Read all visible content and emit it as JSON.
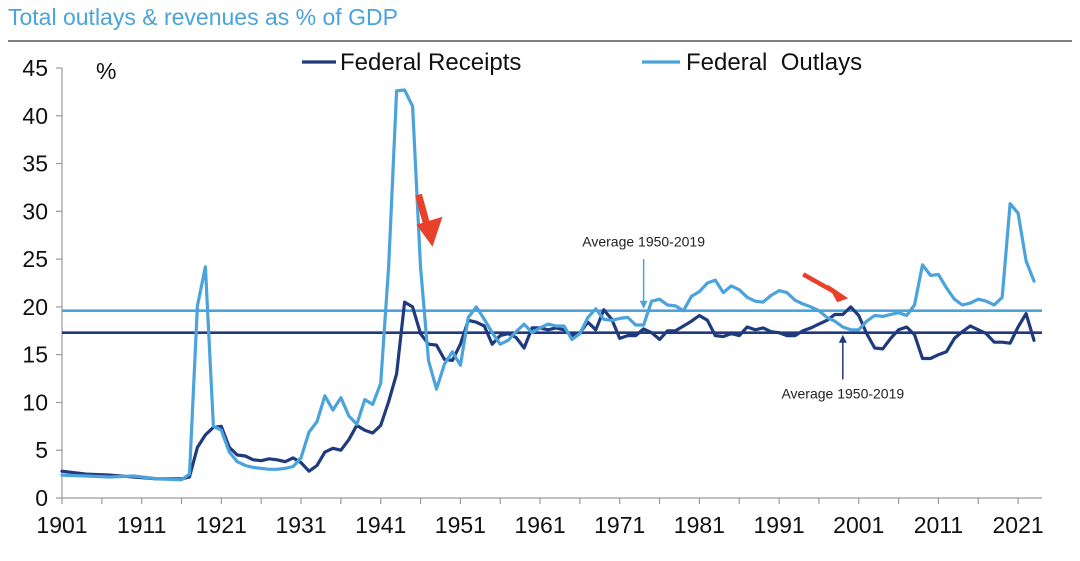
{
  "chart_data": {
    "type": "line",
    "title": "Total outlays & revenues as % of GDP",
    "ylabel": "%",
    "xlabel": "",
    "ylim": [
      0,
      45
    ],
    "xlim": [
      1901,
      2024
    ],
    "y_ticks": [
      "0",
      "5",
      "10",
      "15",
      "20",
      "25",
      "30",
      "35",
      "40",
      "45"
    ],
    "x_ticks": [
      "1901",
      "1911",
      "1921",
      "1931",
      "1941",
      "1951",
      "1961",
      "1971",
      "1981",
      "1991",
      "2001",
      "2011",
      "2021"
    ],
    "legend_position": "top-center",
    "grid": false,
    "colors": {
      "title": "#4ba3dc",
      "receipts": "#1f3a7d",
      "outlays": "#4ba3dc",
      "arrows": "#e8402a"
    },
    "series": [
      {
        "name": "Federal Receipts",
        "color": "#1f3a7d",
        "points": [
          [
            1901,
            2.8
          ],
          [
            1904,
            2.5
          ],
          [
            1907,
            2.4
          ],
          [
            1910,
            2.2
          ],
          [
            1913,
            2.0
          ],
          [
            1916,
            2.0
          ],
          [
            1917,
            2.2
          ],
          [
            1918,
            5.3
          ],
          [
            1919,
            6.6
          ],
          [
            1920,
            7.4
          ],
          [
            1921,
            7.5
          ],
          [
            1922,
            5.3
          ],
          [
            1923,
            4.5
          ],
          [
            1924,
            4.4
          ],
          [
            1925,
            4.0
          ],
          [
            1926,
            3.9
          ],
          [
            1927,
            4.1
          ],
          [
            1928,
            4.0
          ],
          [
            1929,
            3.8
          ],
          [
            1930,
            4.2
          ],
          [
            1931,
            3.7
          ],
          [
            1932,
            2.8
          ],
          [
            1933,
            3.4
          ],
          [
            1934,
            4.8
          ],
          [
            1935,
            5.2
          ],
          [
            1936,
            5.0
          ],
          [
            1937,
            6.1
          ],
          [
            1938,
            7.6
          ],
          [
            1939,
            7.1
          ],
          [
            1940,
            6.8
          ],
          [
            1941,
            7.6
          ],
          [
            1942,
            10.1
          ],
          [
            1943,
            13.0
          ],
          [
            1944,
            20.5
          ],
          [
            1945,
            20.0
          ],
          [
            1946,
            17.2
          ],
          [
            1947,
            16.1
          ],
          [
            1948,
            16.0
          ],
          [
            1949,
            14.5
          ],
          [
            1950,
            14.4
          ],
          [
            1951,
            16.1
          ],
          [
            1952,
            18.6
          ],
          [
            1953,
            18.4
          ],
          [
            1954,
            18.0
          ],
          [
            1955,
            16.1
          ],
          [
            1956,
            17.0
          ],
          [
            1957,
            17.2
          ],
          [
            1958,
            16.8
          ],
          [
            1959,
            15.7
          ],
          [
            1960,
            17.8
          ],
          [
            1961,
            17.8
          ],
          [
            1962,
            17.6
          ],
          [
            1963,
            17.8
          ],
          [
            1964,
            17.6
          ],
          [
            1965,
            17.0
          ],
          [
            1966,
            17.3
          ],
          [
            1967,
            18.4
          ],
          [
            1968,
            17.6
          ],
          [
            1969,
            19.7
          ],
          [
            1970,
            18.7
          ],
          [
            1971,
            16.7
          ],
          [
            1972,
            17.0
          ],
          [
            1973,
            17.0
          ],
          [
            1974,
            17.7
          ],
          [
            1975,
            17.3
          ],
          [
            1976,
            16.6
          ],
          [
            1977,
            17.5
          ],
          [
            1978,
            17.5
          ],
          [
            1979,
            18.0
          ],
          [
            1980,
            18.5
          ],
          [
            1981,
            19.1
          ],
          [
            1982,
            18.6
          ],
          [
            1983,
            17.0
          ],
          [
            1984,
            16.9
          ],
          [
            1985,
            17.2
          ],
          [
            1986,
            17.0
          ],
          [
            1987,
            17.9
          ],
          [
            1988,
            17.6
          ],
          [
            1989,
            17.8
          ],
          [
            1990,
            17.4
          ],
          [
            1991,
            17.3
          ],
          [
            1992,
            17.0
          ],
          [
            1993,
            17.0
          ],
          [
            1994,
            17.5
          ],
          [
            1995,
            17.8
          ],
          [
            1996,
            18.2
          ],
          [
            1997,
            18.6
          ],
          [
            1998,
            19.2
          ],
          [
            1999,
            19.2
          ],
          [
            2000,
            20.0
          ],
          [
            2001,
            19.1
          ],
          [
            2002,
            17.2
          ],
          [
            2003,
            15.7
          ],
          [
            2004,
            15.6
          ],
          [
            2005,
            16.7
          ],
          [
            2006,
            17.6
          ],
          [
            2007,
            17.9
          ],
          [
            2008,
            17.1
          ],
          [
            2009,
            14.6
          ],
          [
            2010,
            14.6
          ],
          [
            2011,
            15.0
          ],
          [
            2012,
            15.3
          ],
          [
            2013,
            16.7
          ],
          [
            2014,
            17.4
          ],
          [
            2015,
            18.0
          ],
          [
            2016,
            17.6
          ],
          [
            2017,
            17.2
          ],
          [
            2018,
            16.3
          ],
          [
            2019,
            16.3
          ],
          [
            2020,
            16.2
          ],
          [
            2021,
            17.9
          ],
          [
            2022,
            19.3
          ],
          [
            2023,
            16.5
          ]
        ]
      },
      {
        "name": "Federal  Outlays",
        "color": "#4ba3dc",
        "points": [
          [
            1901,
            2.4
          ],
          [
            1904,
            2.3
          ],
          [
            1907,
            2.2
          ],
          [
            1910,
            2.3
          ],
          [
            1913,
            2.0
          ],
          [
            1916,
            1.9
          ],
          [
            1917,
            2.5
          ],
          [
            1918,
            20.1
          ],
          [
            1919,
            24.2
          ],
          [
            1920,
            7.5
          ],
          [
            1921,
            7.1
          ],
          [
            1922,
            4.8
          ],
          [
            1923,
            3.8
          ],
          [
            1924,
            3.4
          ],
          [
            1925,
            3.2
          ],
          [
            1926,
            3.1
          ],
          [
            1927,
            3.0
          ],
          [
            1928,
            3.0
          ],
          [
            1929,
            3.1
          ],
          [
            1930,
            3.3
          ],
          [
            1931,
            4.2
          ],
          [
            1932,
            6.9
          ],
          [
            1933,
            8.0
          ],
          [
            1934,
            10.7
          ],
          [
            1935,
            9.2
          ],
          [
            1936,
            10.5
          ],
          [
            1937,
            8.6
          ],
          [
            1938,
            7.7
          ],
          [
            1939,
            10.3
          ],
          [
            1940,
            9.8
          ],
          [
            1941,
            12.0
          ],
          [
            1942,
            24.3
          ],
          [
            1943,
            42.6
          ],
          [
            1944,
            42.7
          ],
          [
            1945,
            41.0
          ],
          [
            1946,
            24.2
          ],
          [
            1947,
            14.4
          ],
          [
            1948,
            11.4
          ],
          [
            1949,
            14.0
          ],
          [
            1950,
            15.3
          ],
          [
            1951,
            13.9
          ],
          [
            1952,
            18.9
          ],
          [
            1953,
            20.0
          ],
          [
            1954,
            18.7
          ],
          [
            1955,
            17.3
          ],
          [
            1956,
            16.1
          ],
          [
            1957,
            16.5
          ],
          [
            1958,
            17.4
          ],
          [
            1959,
            18.2
          ],
          [
            1960,
            17.3
          ],
          [
            1961,
            17.8
          ],
          [
            1962,
            18.2
          ],
          [
            1963,
            18.0
          ],
          [
            1964,
            18.0
          ],
          [
            1965,
            16.6
          ],
          [
            1966,
            17.2
          ],
          [
            1967,
            18.9
          ],
          [
            1968,
            19.8
          ],
          [
            1969,
            18.7
          ],
          [
            1970,
            18.6
          ],
          [
            1971,
            18.8
          ],
          [
            1972,
            18.9
          ],
          [
            1973,
            18.1
          ],
          [
            1974,
            18.1
          ],
          [
            1975,
            20.6
          ],
          [
            1976,
            20.8
          ],
          [
            1977,
            20.2
          ],
          [
            1978,
            20.1
          ],
          [
            1979,
            19.6
          ],
          [
            1980,
            21.1
          ],
          [
            1981,
            21.6
          ],
          [
            1982,
            22.5
          ],
          [
            1983,
            22.8
          ],
          [
            1984,
            21.5
          ],
          [
            1985,
            22.2
          ],
          [
            1986,
            21.8
          ],
          [
            1987,
            21.0
          ],
          [
            1988,
            20.6
          ],
          [
            1989,
            20.5
          ],
          [
            1990,
            21.2
          ],
          [
            1991,
            21.7
          ],
          [
            1992,
            21.5
          ],
          [
            1993,
            20.7
          ],
          [
            1994,
            20.3
          ],
          [
            1995,
            20.0
          ],
          [
            1996,
            19.6
          ],
          [
            1997,
            18.9
          ],
          [
            1998,
            18.5
          ],
          [
            1999,
            17.9
          ],
          [
            2000,
            17.6
          ],
          [
            2001,
            17.6
          ],
          [
            2002,
            18.5
          ],
          [
            2003,
            19.1
          ],
          [
            2004,
            19.0
          ],
          [
            2005,
            19.2
          ],
          [
            2006,
            19.4
          ],
          [
            2007,
            19.1
          ],
          [
            2008,
            20.2
          ],
          [
            2009,
            24.4
          ],
          [
            2010,
            23.3
          ],
          [
            2011,
            23.4
          ],
          [
            2012,
            22.0
          ],
          [
            2013,
            20.8
          ],
          [
            2014,
            20.2
          ],
          [
            2015,
            20.4
          ],
          [
            2016,
            20.8
          ],
          [
            2017,
            20.6
          ],
          [
            2018,
            20.2
          ],
          [
            2019,
            21.0
          ],
          [
            2020,
            30.8
          ],
          [
            2021,
            29.8
          ],
          [
            2022,
            24.8
          ],
          [
            2023,
            22.7
          ]
        ]
      }
    ],
    "reference_lines": [
      {
        "series": "Federal  Outlays",
        "label": "Average 1950-2019",
        "value": 19.6,
        "color": "#4ba3dc",
        "arrow_year": 1974
      },
      {
        "series": "Federal Receipts",
        "label": "Average 1950-2019",
        "value": 17.3,
        "color": "#1f3a7d",
        "arrow_year": 1999
      }
    ],
    "highlight_arrows": [
      {
        "year": 1946,
        "value": 26.5
      },
      {
        "year": 1999,
        "value": 21.0
      }
    ]
  }
}
